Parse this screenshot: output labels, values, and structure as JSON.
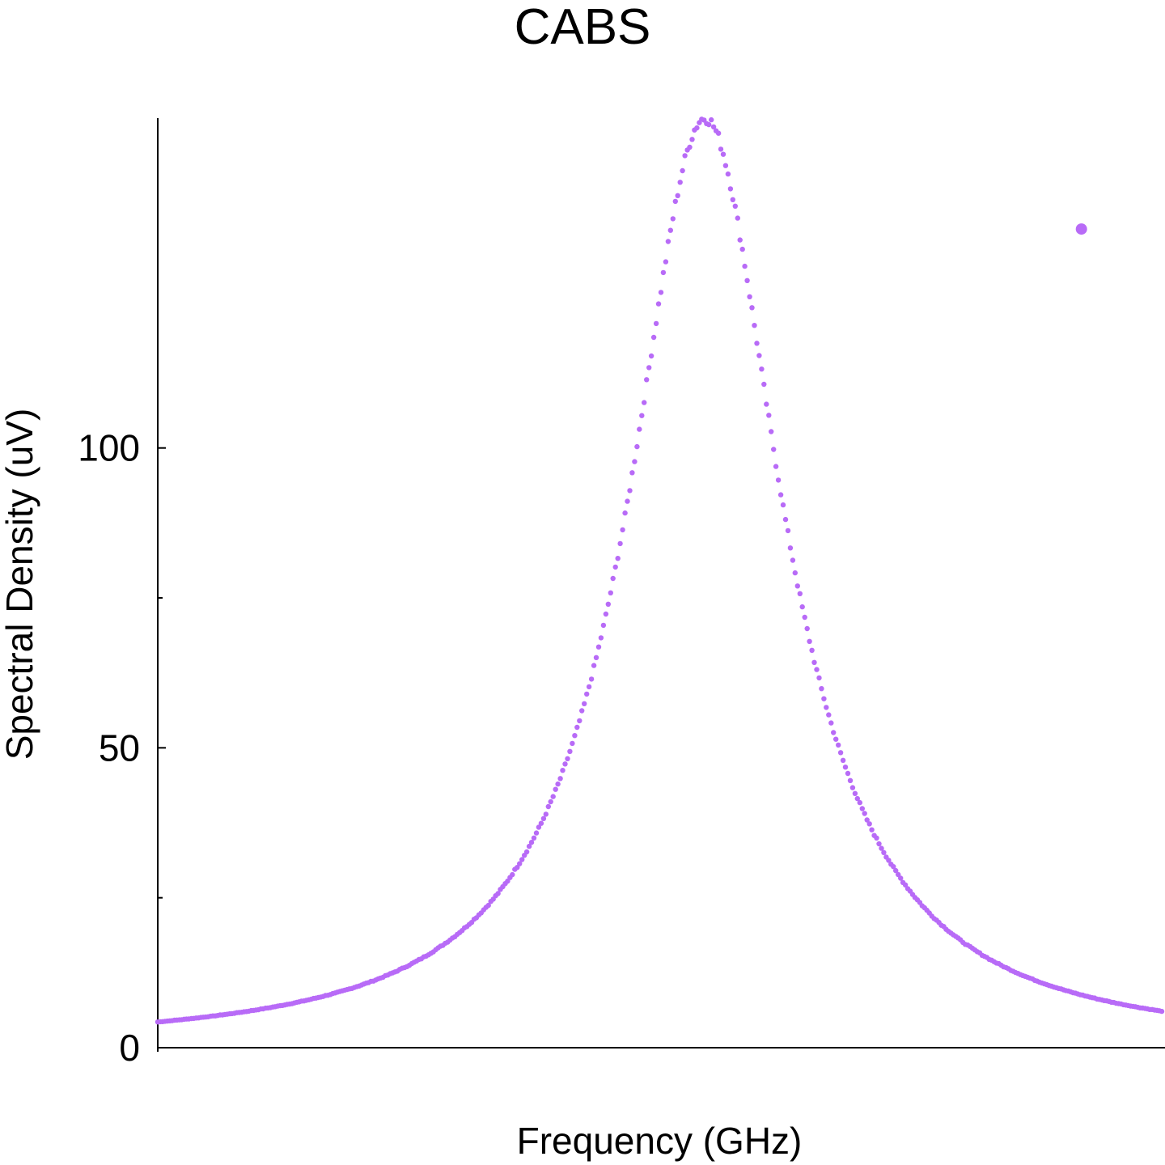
{
  "chart_data": {
    "type": "scatter",
    "title": "CABS",
    "xlabel": "Frequency (GHz)",
    "ylabel": "Spectral Density (uV)",
    "ylim": [
      0,
      155
    ],
    "xlim": [
      0,
      1
    ],
    "y_ticks": [
      {
        "value": 0,
        "label": "0"
      },
      {
        "value": 50,
        "label": "50"
      },
      {
        "value": 100,
        "label": "100"
      }
    ],
    "y_minor_ticks": [
      25,
      75
    ],
    "x_ticks": [],
    "grid": false,
    "legend": "none",
    "series": [
      {
        "color": "#b86bf7",
        "marker": "dot",
        "shape": "lorentzian",
        "peak_x": 0.545,
        "peak_y": 155,
        "half_width": 0.092,
        "baseline": 0,
        "samples": 420,
        "points": [
          {
            "x": 0.0,
            "y": 4.6
          },
          {
            "x": 0.1,
            "y": 7.6
          },
          {
            "x": 0.2,
            "y": 13.2
          },
          {
            "x": 0.3,
            "y": 26.5
          },
          {
            "x": 0.4,
            "y": 48.0
          },
          {
            "x": 0.45,
            "y": 70.0
          },
          {
            "x": 0.5,
            "y": 116.0
          },
          {
            "x": 0.545,
            "y": 155.0
          },
          {
            "x": 0.6,
            "y": 136.0
          },
          {
            "x": 0.65,
            "y": 91.0
          },
          {
            "x": 0.7,
            "y": 58.0
          },
          {
            "x": 0.75,
            "y": 38.0
          },
          {
            "x": 0.8,
            "y": 26.8
          },
          {
            "x": 0.9,
            "y": 13.5
          },
          {
            "x": 1.0,
            "y": 4.0
          }
        ]
      },
      {
        "color": "#b86bf7",
        "marker": "large-dot",
        "points": [
          {
            "x": 0.92,
            "y": 136.5
          }
        ]
      }
    ]
  }
}
